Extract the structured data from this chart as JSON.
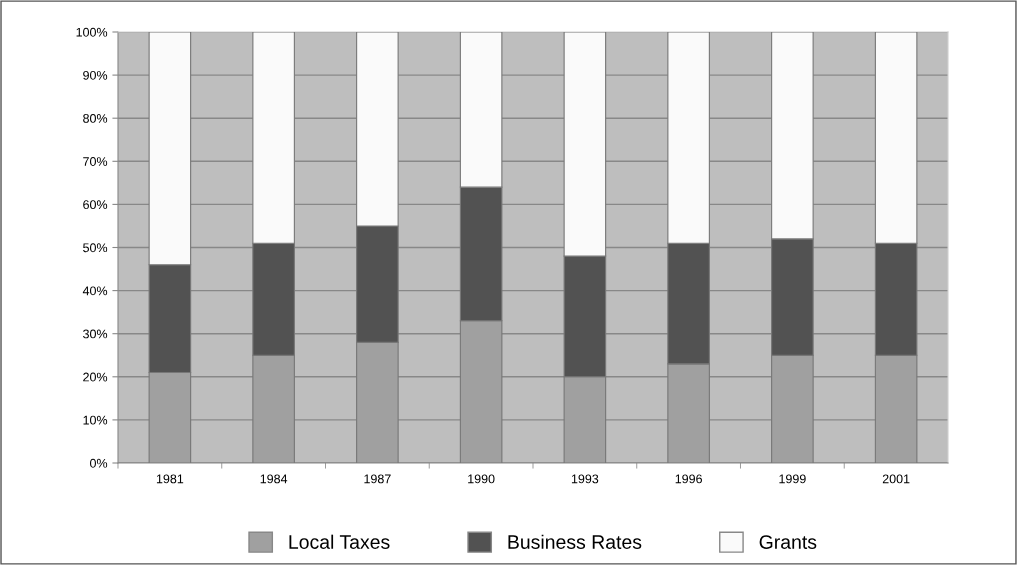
{
  "chart_data": {
    "type": "bar",
    "stacked": true,
    "categories": [
      "1981",
      "1984",
      "1987",
      "1990",
      "1993",
      "1996",
      "1999",
      "2001"
    ],
    "series": [
      {
        "name": "Local Taxes",
        "color": "#a0a0a0",
        "values": [
          21,
          25,
          28,
          33,
          20,
          23,
          25,
          25
        ]
      },
      {
        "name": "Business Rates",
        "color": "#525252",
        "values": [
          25,
          26,
          27,
          31,
          28,
          28,
          27,
          26
        ]
      },
      {
        "name": "Grants",
        "color": "#fafafa",
        "values": [
          54,
          49,
          45,
          36,
          52,
          49,
          48,
          49
        ]
      }
    ],
    "ylim": [
      0,
      100
    ],
    "yticks": [
      {
        "value": 0,
        "label": "0%"
      },
      {
        "value": 10,
        "label": "10%"
      },
      {
        "value": 20,
        "label": "20%"
      },
      {
        "value": 30,
        "label": "30%"
      },
      {
        "value": 40,
        "label": "40%"
      },
      {
        "value": 50,
        "label": "50%"
      },
      {
        "value": 60,
        "label": "60%"
      },
      {
        "value": 70,
        "label": "70%"
      },
      {
        "value": 80,
        "label": "80%"
      },
      {
        "value": 90,
        "label": "90%"
      },
      {
        "value": 100,
        "label": "100%"
      }
    ],
    "grid": "y",
    "legend": "bottom"
  }
}
